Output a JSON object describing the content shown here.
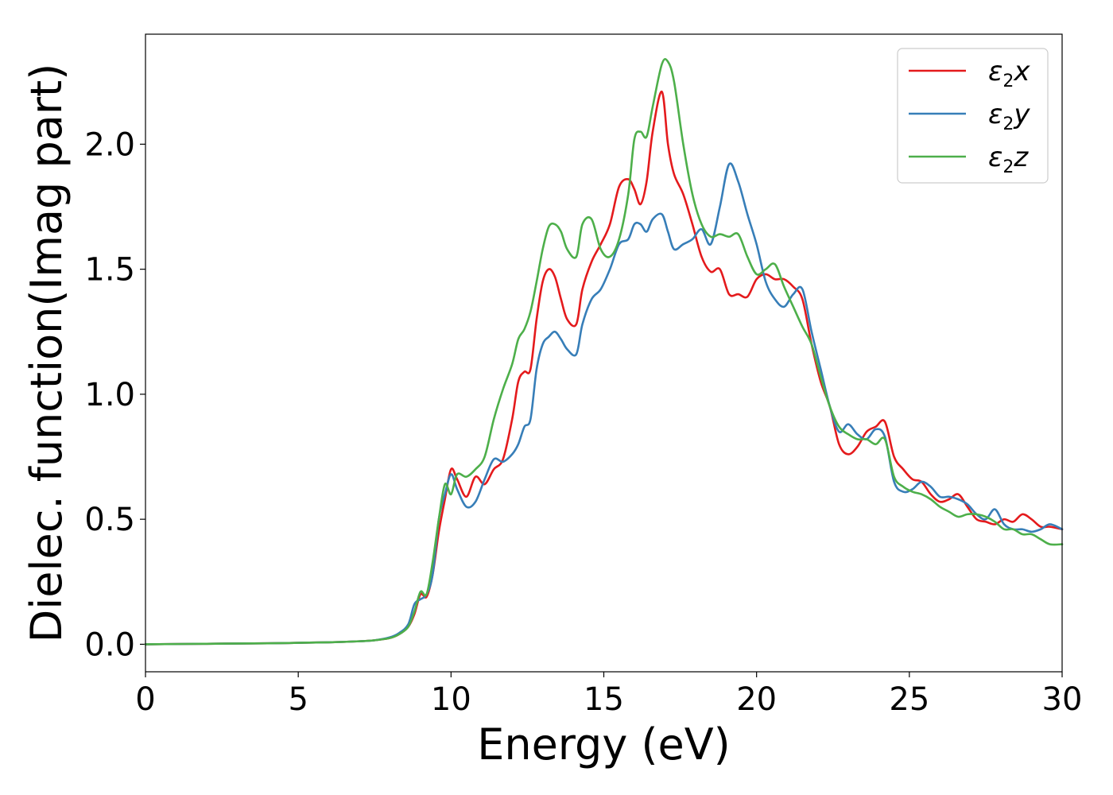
{
  "chart_data": {
    "type": "line",
    "title": "",
    "xlabel": "Energy (eV)",
    "ylabel": "Dielec. function(Imag part)",
    "xlim": [
      0,
      30
    ],
    "ylim": [
      -0.11,
      2.44
    ],
    "xticks": [
      0,
      5,
      10,
      15,
      20,
      25,
      30
    ],
    "xtick_labels": [
      "0",
      "5",
      "10",
      "15",
      "20",
      "25",
      "30"
    ],
    "yticks": [
      0.0,
      0.5,
      1.0,
      1.5,
      2.0
    ],
    "ytick_labels": [
      "0.0",
      "0.5",
      "1.0",
      "1.5",
      "2.0"
    ],
    "grid": false,
    "legend_position": "top-right",
    "series": [
      {
        "name": "ε₂x",
        "legend_base": "ε",
        "legend_sub": "2",
        "legend_tail": "x",
        "color": "#e41a1c",
        "x": [
          0,
          2,
          4,
          6,
          7,
          7.5,
          8,
          8.3,
          8.6,
          8.8,
          9.0,
          9.2,
          9.4,
          9.6,
          9.8,
          10.0,
          10.2,
          10.5,
          10.8,
          11.1,
          11.4,
          11.7,
          12.0,
          12.2,
          12.4,
          12.6,
          12.8,
          13.0,
          13.2,
          13.4,
          13.6,
          13.8,
          14.1,
          14.3,
          14.6,
          14.9,
          15.2,
          15.5,
          15.8,
          16.0,
          16.2,
          16.4,
          16.6,
          16.9,
          17.1,
          17.3,
          17.6,
          17.9,
          18.2,
          18.5,
          18.8,
          19.1,
          19.4,
          19.7,
          20.0,
          20.3,
          20.6,
          20.9,
          21.2,
          21.5,
          21.8,
          22.1,
          22.4,
          22.7,
          23.0,
          23.3,
          23.6,
          23.9,
          24.2,
          24.5,
          24.8,
          25.1,
          25.4,
          25.7,
          26.0,
          26.3,
          26.6,
          26.9,
          27.2,
          27.5,
          27.8,
          28.1,
          28.4,
          28.7,
          29.0,
          29.3,
          29.6,
          30.0
        ],
        "y": [
          0,
          0.002,
          0.004,
          0.008,
          0.012,
          0.016,
          0.025,
          0.04,
          0.07,
          0.12,
          0.2,
          0.19,
          0.28,
          0.45,
          0.58,
          0.7,
          0.66,
          0.59,
          0.67,
          0.64,
          0.7,
          0.74,
          0.9,
          1.05,
          1.09,
          1.1,
          1.3,
          1.45,
          1.5,
          1.47,
          1.38,
          1.3,
          1.28,
          1.42,
          1.53,
          1.6,
          1.68,
          1.83,
          1.86,
          1.82,
          1.76,
          1.85,
          2.05,
          2.21,
          2.0,
          1.88,
          1.8,
          1.68,
          1.55,
          1.49,
          1.5,
          1.4,
          1.4,
          1.39,
          1.46,
          1.48,
          1.46,
          1.46,
          1.43,
          1.38,
          1.2,
          1.05,
          0.95,
          0.8,
          0.76,
          0.79,
          0.85,
          0.87,
          0.89,
          0.75,
          0.7,
          0.66,
          0.65,
          0.6,
          0.57,
          0.58,
          0.6,
          0.55,
          0.5,
          0.49,
          0.48,
          0.5,
          0.49,
          0.52,
          0.5,
          0.47,
          0.47,
          0.46
        ]
      },
      {
        "name": "ε₂y",
        "legend_base": "ε",
        "legend_sub": "2",
        "legend_tail": "y",
        "color": "#377eb8",
        "x": [
          0,
          2,
          4,
          6,
          7,
          7.5,
          8,
          8.3,
          8.6,
          8.8,
          9.0,
          9.2,
          9.4,
          9.6,
          9.8,
          10.0,
          10.2,
          10.5,
          10.8,
          11.1,
          11.4,
          11.7,
          12.0,
          12.2,
          12.4,
          12.6,
          12.8,
          13.0,
          13.2,
          13.4,
          13.6,
          13.8,
          14.1,
          14.3,
          14.6,
          14.9,
          15.2,
          15.5,
          15.8,
          16.0,
          16.2,
          16.4,
          16.6,
          16.9,
          17.1,
          17.3,
          17.6,
          17.9,
          18.2,
          18.5,
          18.8,
          19.1,
          19.4,
          19.7,
          20.0,
          20.3,
          20.6,
          20.9,
          21.2,
          21.5,
          21.8,
          22.1,
          22.4,
          22.7,
          23.0,
          23.3,
          23.6,
          23.9,
          24.2,
          24.5,
          24.8,
          25.1,
          25.4,
          25.7,
          26.0,
          26.3,
          26.6,
          26.9,
          27.2,
          27.5,
          27.8,
          28.1,
          28.4,
          28.7,
          29.0,
          29.3,
          29.6,
          30.0
        ],
        "y": [
          0,
          0.002,
          0.004,
          0.008,
          0.012,
          0.016,
          0.028,
          0.045,
          0.08,
          0.16,
          0.18,
          0.2,
          0.28,
          0.5,
          0.6,
          0.68,
          0.62,
          0.55,
          0.57,
          0.66,
          0.74,
          0.73,
          0.76,
          0.8,
          0.87,
          0.9,
          1.1,
          1.2,
          1.23,
          1.25,
          1.22,
          1.18,
          1.16,
          1.28,
          1.38,
          1.42,
          1.5,
          1.6,
          1.62,
          1.68,
          1.68,
          1.65,
          1.7,
          1.72,
          1.65,
          1.58,
          1.6,
          1.62,
          1.66,
          1.6,
          1.75,
          1.92,
          1.85,
          1.72,
          1.6,
          1.45,
          1.38,
          1.35,
          1.4,
          1.42,
          1.25,
          1.1,
          0.95,
          0.85,
          0.88,
          0.84,
          0.82,
          0.86,
          0.83,
          0.65,
          0.61,
          0.62,
          0.65,
          0.63,
          0.59,
          0.59,
          0.58,
          0.56,
          0.52,
          0.5,
          0.54,
          0.48,
          0.46,
          0.46,
          0.45,
          0.46,
          0.48,
          0.46
        ]
      },
      {
        "name": "ε₂z",
        "legend_base": "ε",
        "legend_sub": "2",
        "legend_tail": "z",
        "color": "#4daf4a",
        "x": [
          0,
          2,
          4,
          6,
          7,
          7.5,
          8,
          8.3,
          8.6,
          8.8,
          9.0,
          9.2,
          9.4,
          9.6,
          9.8,
          10.0,
          10.2,
          10.5,
          10.8,
          11.1,
          11.4,
          11.7,
          12.0,
          12.2,
          12.4,
          12.6,
          12.8,
          13.0,
          13.2,
          13.4,
          13.6,
          13.8,
          14.1,
          14.3,
          14.6,
          14.9,
          15.2,
          15.5,
          15.8,
          16.0,
          16.2,
          16.4,
          16.6,
          16.9,
          17.1,
          17.3,
          17.6,
          17.9,
          18.2,
          18.5,
          18.8,
          19.1,
          19.4,
          19.7,
          20.0,
          20.3,
          20.6,
          20.9,
          21.2,
          21.5,
          21.8,
          22.1,
          22.4,
          22.7,
          23.0,
          23.3,
          23.6,
          23.9,
          24.2,
          24.5,
          24.8,
          25.1,
          25.4,
          25.7,
          26.0,
          26.3,
          26.6,
          26.9,
          27.2,
          27.5,
          27.8,
          28.1,
          28.4,
          28.7,
          29.0,
          29.3,
          29.6,
          30.0
        ],
        "y": [
          0,
          0.002,
          0.004,
          0.008,
          0.012,
          0.016,
          0.025,
          0.04,
          0.07,
          0.13,
          0.21,
          0.2,
          0.33,
          0.5,
          0.64,
          0.6,
          0.68,
          0.67,
          0.7,
          0.75,
          0.9,
          1.02,
          1.12,
          1.22,
          1.26,
          1.33,
          1.45,
          1.58,
          1.67,
          1.68,
          1.65,
          1.58,
          1.55,
          1.68,
          1.7,
          1.58,
          1.55,
          1.62,
          1.8,
          2.02,
          2.05,
          2.03,
          2.15,
          2.32,
          2.33,
          2.25,
          2.0,
          1.8,
          1.68,
          1.63,
          1.64,
          1.63,
          1.64,
          1.55,
          1.48,
          1.5,
          1.52,
          1.43,
          1.35,
          1.27,
          1.2,
          1.07,
          0.95,
          0.87,
          0.84,
          0.82,
          0.82,
          0.8,
          0.82,
          0.67,
          0.63,
          0.61,
          0.6,
          0.58,
          0.55,
          0.53,
          0.51,
          0.52,
          0.52,
          0.51,
          0.49,
          0.46,
          0.46,
          0.44,
          0.44,
          0.42,
          0.4,
          0.4
        ]
      }
    ]
  }
}
